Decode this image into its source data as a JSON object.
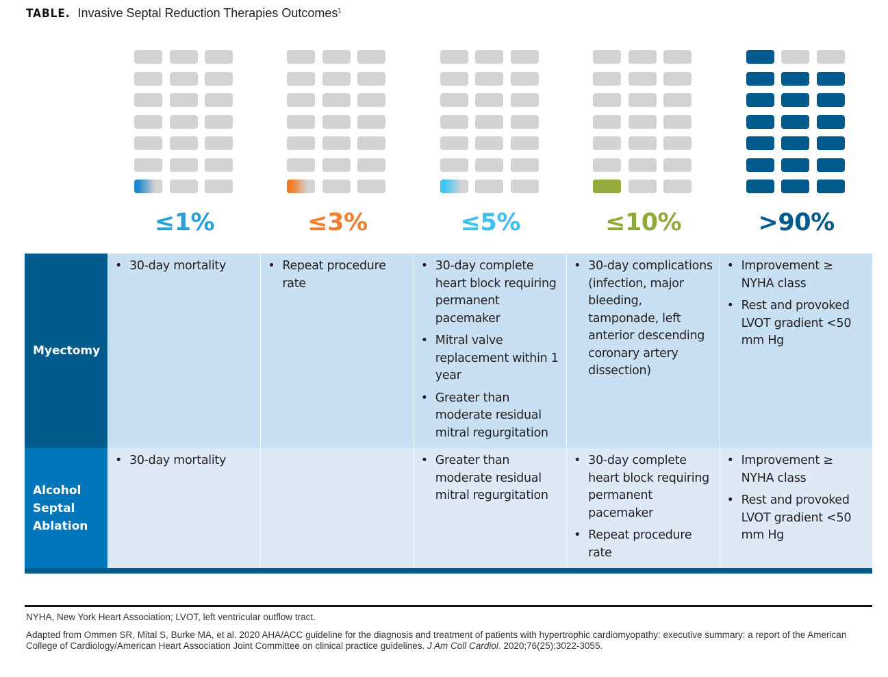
{
  "title": {
    "label": "TABLE.",
    "text": "Invasive Septal Reduction Therapies Outcomes",
    "superscript": "1"
  },
  "outcome_columns": [
    {
      "label": "≤1%",
      "color": "#29a0dc",
      "filled_blocks": 1,
      "fill_style": "gradient",
      "fill_color": "#1e88d0"
    },
    {
      "label": "≤3%",
      "color": "#f08030",
      "filled_blocks": 1,
      "fill_style": "gradient",
      "fill_color": "#f47a20"
    },
    {
      "label": "≤5%",
      "color": "#3cc0ee",
      "filled_blocks": 1,
      "fill_style": "gradient",
      "fill_color": "#3dc5f5"
    },
    {
      "label": "≤10%",
      "color": "#8faa3a",
      "filled_blocks": 1,
      "fill_style": "solid",
      "fill_color": "#93ab3d"
    },
    {
      "label": ">90%",
      "color": "#005a8c",
      "filled_blocks": 19,
      "fill_style": "solid",
      "fill_color": "#005a8c"
    }
  ],
  "grid": {
    "rows": 7,
    "cols": 3,
    "empty_color": "#d2d3d5"
  },
  "table": {
    "rows": [
      {
        "header": "Myectomy",
        "cells": [
          [
            "30-day mortality"
          ],
          [
            "Repeat procedure rate"
          ],
          [
            "30-day complete heart block requiring permanent pacemaker",
            "Mitral valve replacement within 1 year",
            "Greater than moderate residual mitral regurgitation"
          ],
          [
            "30-day complications (infection, major bleeding, tamponade, left anterior descending coronary artery dissection)"
          ],
          [
            "Improvement ≥ NYHA class",
            "Rest and provoked LVOT gradient <50 mm Hg"
          ]
        ]
      },
      {
        "header": "Alcohol Septal Ablation",
        "cells": [
          [
            "30-day mortality"
          ],
          [],
          [
            "Greater than moderate residual mitral regurgitation"
          ],
          [
            "30-day complete heart block requiring permanent pacemaker",
            "Repeat procedure rate"
          ],
          [
            "Improvement ≥ NYHA class",
            "Rest and provoked LVOT gradient <50 mm Hg"
          ]
        ]
      }
    ]
  },
  "footnotes": {
    "abbreviations": "NYHA, New York Heart Association; LVOT, left ventricular outflow tract.",
    "citation_main": "Adapted from Ommen SR, Mital S, Burke MA, et al. 2020 AHA/ACC guideline for the diagnosis and treatment of patients with hypertrophic cardiomyopathy: executive summary: a report of the American College of Cardiology/American Heart Association Joint Committee on clinical practice guidelines.",
    "citation_journal": "J Am Coll Cardiol",
    "citation_tail": ". 2020;76(25):3022-3055."
  }
}
